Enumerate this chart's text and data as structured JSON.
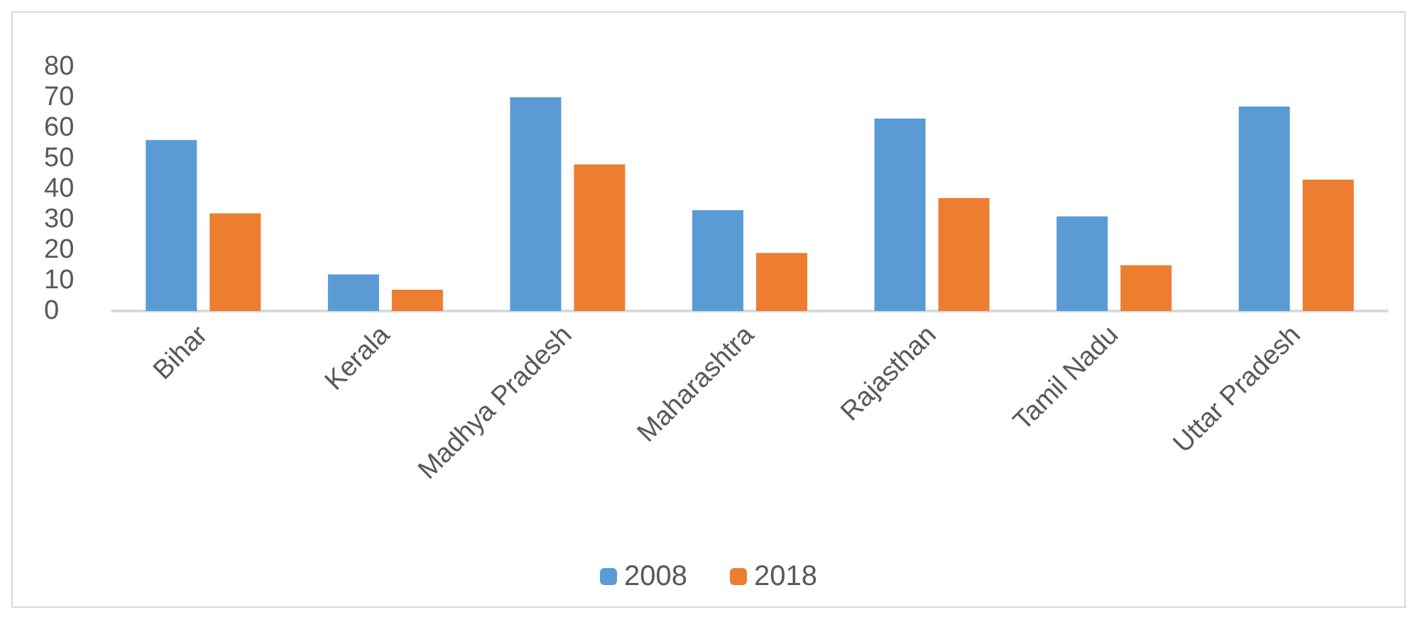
{
  "chart_data": {
    "type": "bar",
    "categories": [
      "Bihar",
      "Kerala",
      "Madhya Pradesh",
      "Maharashtra",
      "Rajasthan",
      "Tamil Nadu",
      "Uttar Pradesh"
    ],
    "series": [
      {
        "name": "2008",
        "color": "#5b9bd5",
        "values": [
          56,
          12,
          70,
          33,
          63,
          31,
          67
        ]
      },
      {
        "name": "2018",
        "color": "#ed7d31",
        "values": [
          32,
          7,
          48,
          19,
          37,
          15,
          43
        ]
      }
    ],
    "ylim": [
      0,
      80
    ],
    "yticks": [
      0,
      10,
      20,
      30,
      40,
      50,
      60,
      70,
      80
    ],
    "grid": false,
    "legend": "bottom"
  }
}
